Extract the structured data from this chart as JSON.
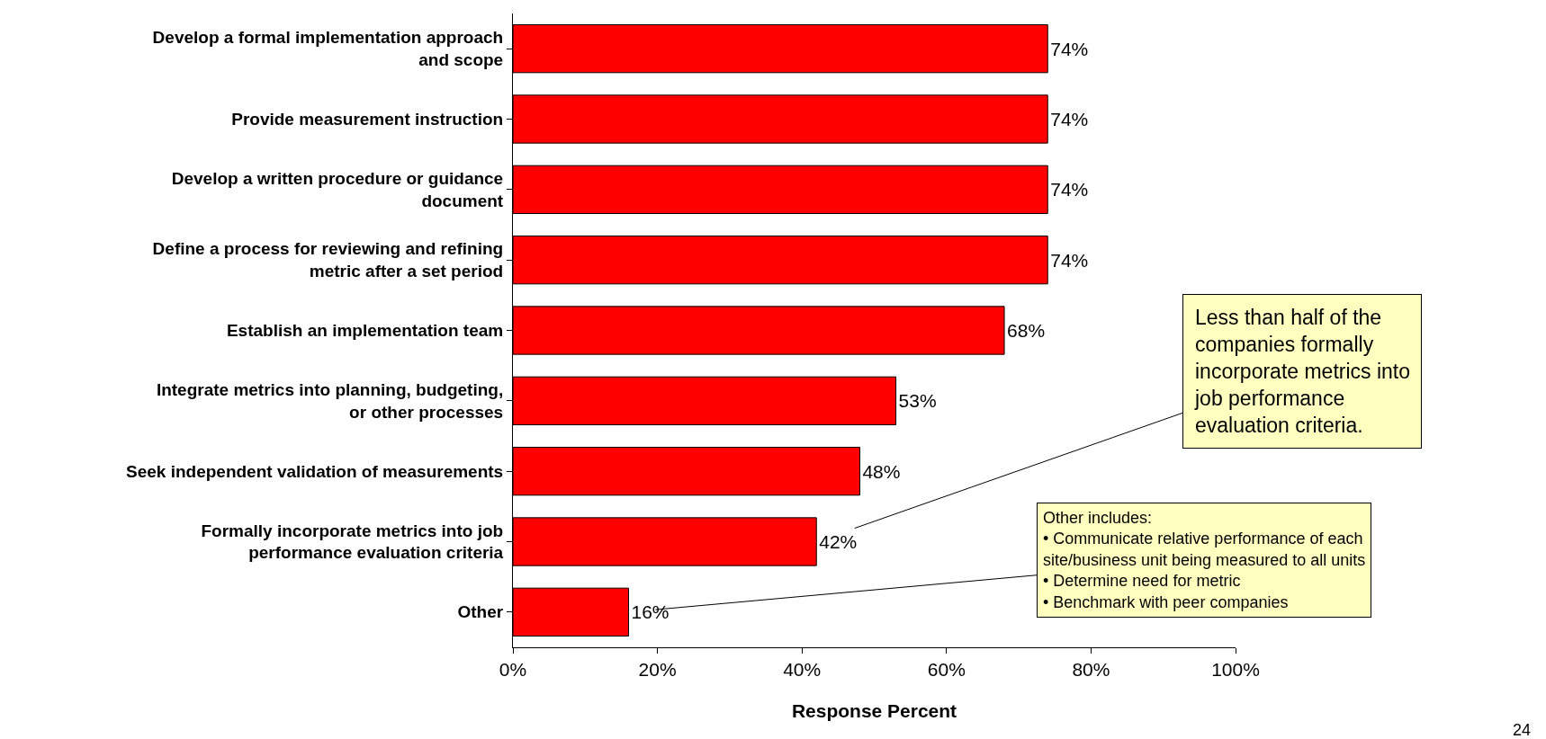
{
  "chart_data": {
    "type": "bar",
    "orientation": "horizontal",
    "xlabel": "Response Percent",
    "categories": [
      "Develop a formal implementation approach and scope",
      "Provide measurement instruction",
      "Develop a written procedure or guidance document",
      "Define a process for reviewing and refining metric after a set period",
      "Establish an implementation team",
      "Integrate metrics into planning, budgeting, or other processes",
      "Seek independent validation of measurements",
      "Formally incorporate metrics into job performance evaluation criteria",
      "Other"
    ],
    "values": [
      74,
      74,
      74,
      74,
      68,
      53,
      48,
      42,
      16
    ],
    "value_labels": [
      "74%",
      "74%",
      "74%",
      "74%",
      "68%",
      "53%",
      "48%",
      "42%",
      "16%"
    ],
    "color": "#ff0000",
    "xlim": [
      0,
      100
    ],
    "xticks": [
      {
        "value": 0,
        "label": "0%"
      },
      {
        "value": 20,
        "label": "20%"
      },
      {
        "value": 40,
        "label": "40%"
      },
      {
        "value": 60,
        "label": "60%"
      },
      {
        "value": 80,
        "label": "80%"
      },
      {
        "value": 100,
        "label": "100%"
      }
    ],
    "legend": false,
    "annotations": [
      {
        "text": "Less than half of the companies formally incorporate metrics into job performance evaluation criteria.",
        "x": 42,
        "y": "Formally incorporate metrics into job performance evaluation criteria"
      },
      {
        "text": "Other includes:\n• Communicate relative performance of each site/business unit being measured to all units\n• Determine need for metric\n• Benchmark with peer companies",
        "x": 16,
        "y": "Other"
      },
      "24"
    ]
  }
}
